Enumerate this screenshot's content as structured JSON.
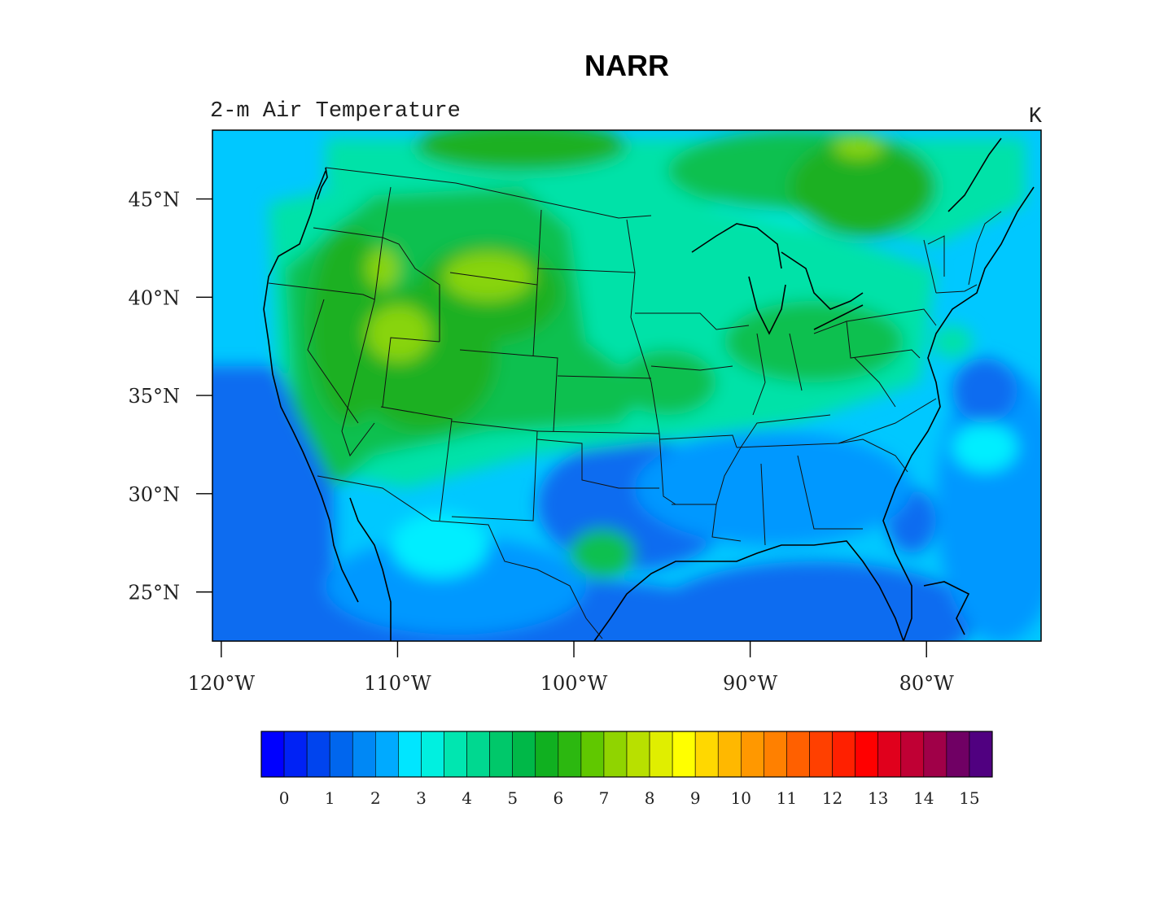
{
  "title": "NARR",
  "subtitle_left": "2-m Air Temperature",
  "subtitle_right": "K",
  "axes": {
    "lat": {
      "ticks": [
        {
          "value": 25,
          "label": "25°N"
        },
        {
          "value": 30,
          "label": "30°N"
        },
        {
          "value": 35,
          "label": "35°N"
        },
        {
          "value": 40,
          "label": "40°N"
        },
        {
          "value": 45,
          "label": "45°N"
        }
      ],
      "range": [
        22.5,
        48.5
      ]
    },
    "lon": {
      "ticks": [
        {
          "value": -120,
          "label": "120°W"
        },
        {
          "value": -110,
          "label": "110°W"
        },
        {
          "value": -100,
          "label": "100°W"
        },
        {
          "value": -90,
          "label": "90°W"
        },
        {
          "value": -80,
          "label": "80°W"
        }
      ],
      "range": [
        -120.5,
        -73.5
      ]
    }
  },
  "colorbar": {
    "labels": [
      "0",
      "1",
      "2",
      "3",
      "4",
      "5",
      "6",
      "7",
      "8",
      "9",
      "10",
      "11",
      "12",
      "13",
      "14",
      "15"
    ],
    "colors": [
      "#0000ff",
      "#0022f5",
      "#0044ee",
      "#0066ee",
      "#0088f5",
      "#00aaff",
      "#00e6ff",
      "#00f0e0",
      "#00e6b0",
      "#00d890",
      "#00c86a",
      "#00b848",
      "#10b020",
      "#2cb810",
      "#60c800",
      "#90d400",
      "#b8e000",
      "#e0ee00",
      "#ffff00",
      "#ffd800",
      "#ffb800",
      "#ff9800",
      "#ff8000",
      "#ff6000",
      "#ff4000",
      "#ff2000",
      "#ff0000",
      "#e0001c",
      "#c00034",
      "#a00048",
      "#700064",
      "#500080"
    ]
  },
  "colors": {
    "field_blue": "#0a6cf0",
    "field_lightblue": "#0098ff",
    "field_cyan": "#00eeff",
    "field_teal": "#00e2a8",
    "field_green": "#10c050",
    "field_darkgreen": "#1ab020",
    "field_yellowgreen": "#88d40a"
  }
}
